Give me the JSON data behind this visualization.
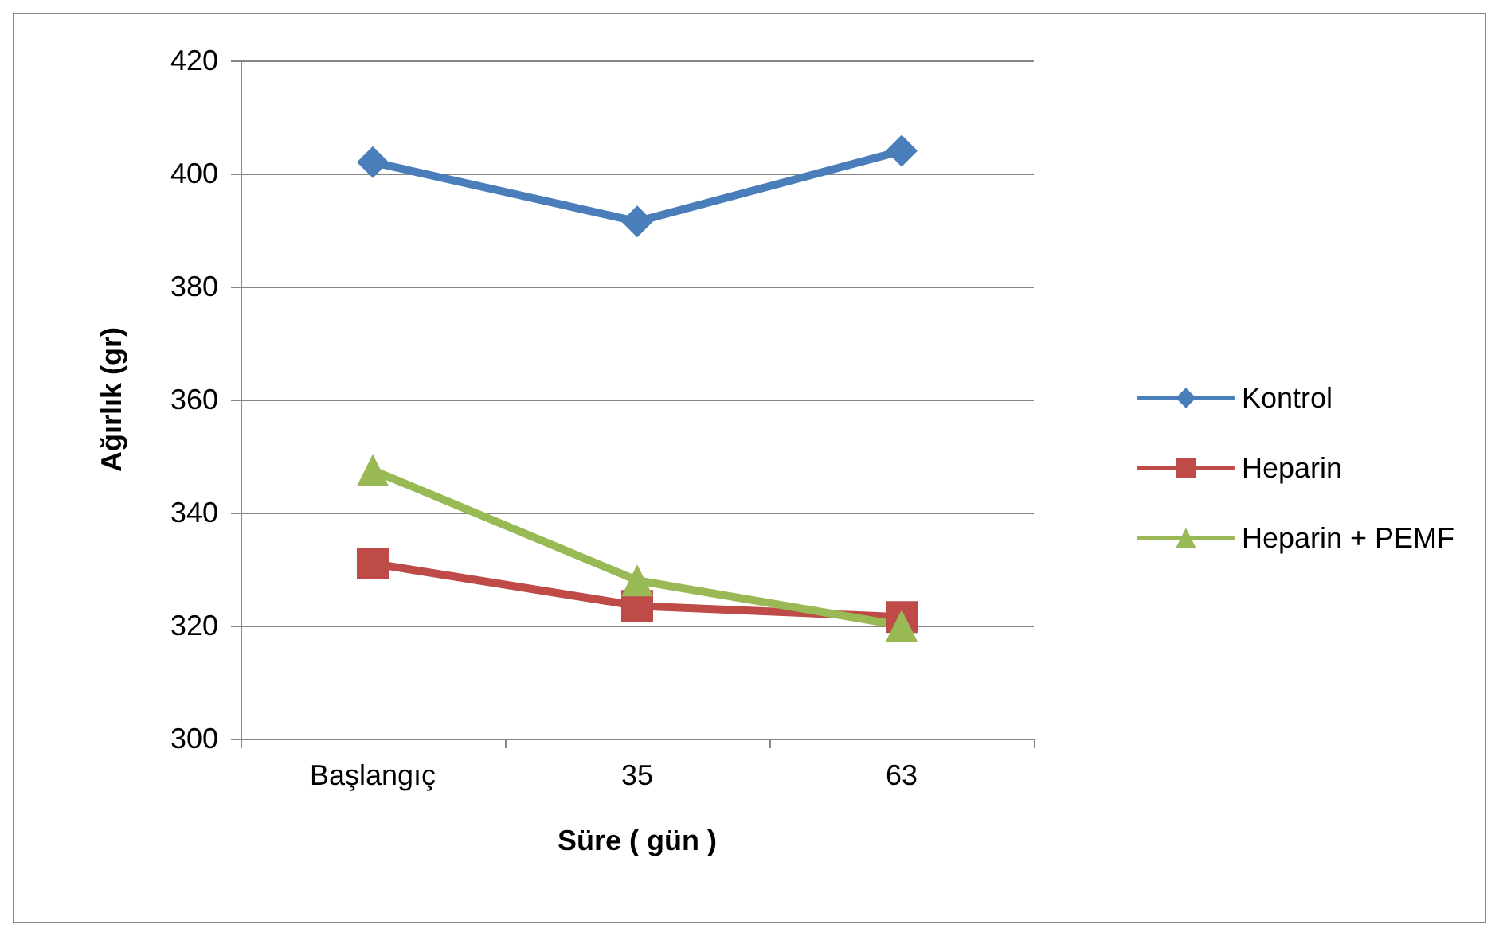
{
  "chart_data": {
    "type": "line",
    "xlabel": "Süre ( gün )",
    "ylabel": "Ağırlık (gr)",
    "categories": [
      "Başlangıç",
      "35",
      "63"
    ],
    "series": [
      {
        "name": "Kontrol",
        "color": "#4a7ebb",
        "values": [
          402,
          391.5,
          404
        ],
        "marker": "diamond"
      },
      {
        "name": "Heparin",
        "color": "#be4b48",
        "values": [
          331,
          323.5,
          321.5
        ],
        "marker": "square"
      },
      {
        "name": "Heparin + PEMF",
        "color": "#98b954",
        "values": [
          347.5,
          328,
          320
        ],
        "marker": "triangle"
      }
    ],
    "ylim": [
      300,
      420
    ],
    "yticks": [
      300,
      320,
      340,
      360,
      380,
      400,
      420
    ],
    "grid": "y",
    "legend": "right",
    "line_style": "solid"
  }
}
